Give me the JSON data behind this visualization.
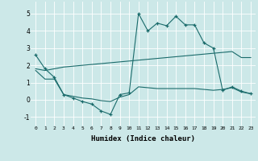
{
  "xlabel": "Humidex (Indice chaleur)",
  "bg_color": "#cce8e8",
  "line_color": "#1a6b6b",
  "grid_color": "#ffffff",
  "xlim": [
    -0.5,
    23.5
  ],
  "ylim": [
    -1.5,
    5.7
  ],
  "yticks": [
    -1,
    0,
    1,
    2,
    3,
    4,
    5
  ],
  "xticks": [
    0,
    1,
    2,
    3,
    4,
    5,
    6,
    7,
    8,
    9,
    10,
    11,
    12,
    13,
    14,
    15,
    16,
    17,
    18,
    19,
    20,
    21,
    22,
    23
  ],
  "x": [
    0,
    1,
    2,
    3,
    4,
    5,
    6,
    7,
    8,
    9,
    10,
    11,
    12,
    13,
    14,
    15,
    16,
    17,
    18,
    19,
    20,
    21,
    22,
    23
  ],
  "line1": [
    2.6,
    1.8,
    1.3,
    0.3,
    0.1,
    -0.1,
    -0.25,
    -0.65,
    -0.85,
    0.3,
    0.4,
    5.0,
    4.0,
    4.45,
    4.3,
    4.85,
    4.35,
    4.35,
    3.3,
    3.0,
    0.55,
    0.75,
    0.5,
    0.35
  ],
  "line2": [
    1.8,
    1.7,
    1.8,
    1.9,
    1.95,
    2.0,
    2.05,
    2.1,
    2.15,
    2.2,
    2.25,
    2.3,
    2.35,
    2.4,
    2.45,
    2.5,
    2.55,
    2.6,
    2.65,
    2.7,
    2.75,
    2.8,
    2.45,
    2.45
  ],
  "line3": [
    1.7,
    1.2,
    1.2,
    0.3,
    0.2,
    0.1,
    0.05,
    -0.05,
    -0.1,
    0.15,
    0.3,
    0.75,
    0.7,
    0.65,
    0.65,
    0.65,
    0.65,
    0.65,
    0.6,
    0.55,
    0.6,
    0.7,
    0.45,
    0.35
  ]
}
